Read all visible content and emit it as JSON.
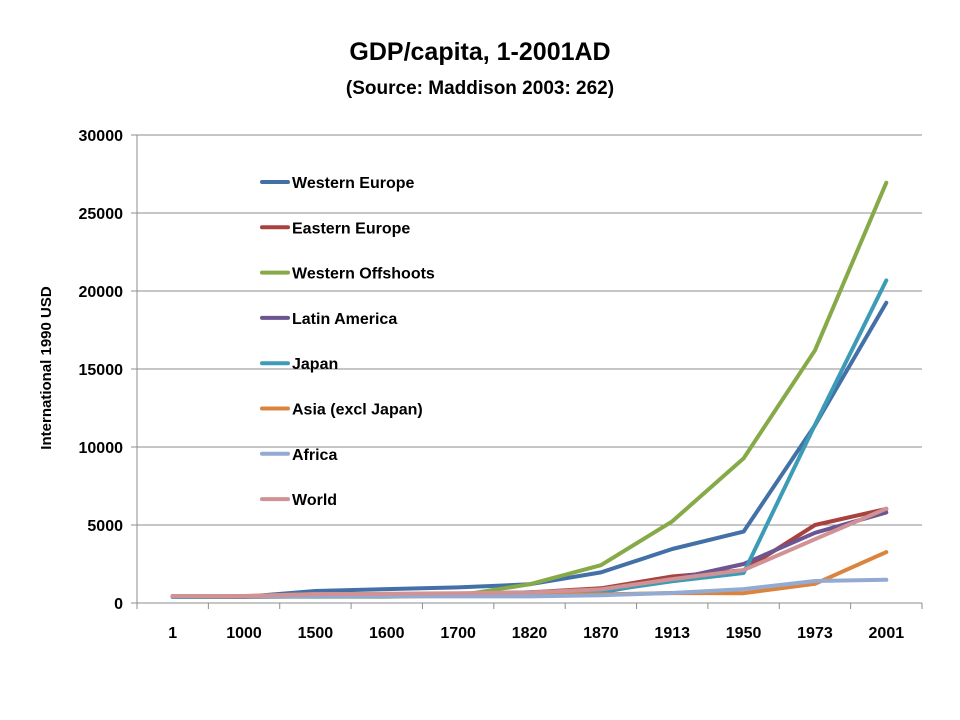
{
  "chart_data": {
    "type": "line",
    "title": "GDP/capita, 1-2001AD",
    "subtitle": "(Source: Maddison 2003: 262)",
    "xlabel": "",
    "ylabel": "International 1990 USD",
    "categories": [
      "1",
      "1000",
      "1500",
      "1600",
      "1700",
      "1820",
      "1870",
      "1913",
      "1950",
      "1973",
      "2001"
    ],
    "ylim": [
      0,
      30000
    ],
    "yticks": [
      0,
      5000,
      10000,
      15000,
      20000,
      25000,
      30000
    ],
    "grid": true,
    "legend_position": "inside-top-left",
    "series": [
      {
        "name": "Western Europe",
        "color": "#4470A8",
        "values": [
          450,
          400,
          770,
          890,
          1000,
          1200,
          1960,
          3460,
          4580,
          11400,
          19250
        ]
      },
      {
        "name": "Eastern Europe",
        "color": "#A8423E",
        "values": [
          400,
          400,
          500,
          550,
          600,
          680,
          940,
          1700,
          2100,
          5000,
          6030
        ]
      },
      {
        "name": "Western Offshoots",
        "color": "#86AA48",
        "values": [
          400,
          400,
          400,
          400,
          480,
          1200,
          2420,
          5230,
          9270,
          16200,
          26940
        ]
      },
      {
        "name": "Latin America",
        "color": "#6C5590",
        "values": [
          400,
          400,
          420,
          440,
          530,
          690,
          680,
          1500,
          2500,
          4500,
          5810
        ]
      },
      {
        "name": "Japan",
        "color": "#3E9BB6",
        "values": [
          400,
          430,
          500,
          520,
          570,
          670,
          740,
          1390,
          1920,
          11430,
          20680
        ]
      },
      {
        "name": "Asia (excl Japan)",
        "color": "#DB843E",
        "values": [
          450,
          450,
          570,
          570,
          570,
          580,
          550,
          640,
          630,
          1230,
          3260
        ]
      },
      {
        "name": "Africa",
        "color": "#93AAD3",
        "values": [
          430,
          430,
          410,
          420,
          420,
          420,
          500,
          640,
          890,
          1410,
          1490
        ]
      },
      {
        "name": "World",
        "color": "#D09294",
        "values": [
          450,
          440,
          570,
          590,
          620,
          670,
          870,
          1530,
          2110,
          4090,
          6050
        ]
      }
    ]
  }
}
